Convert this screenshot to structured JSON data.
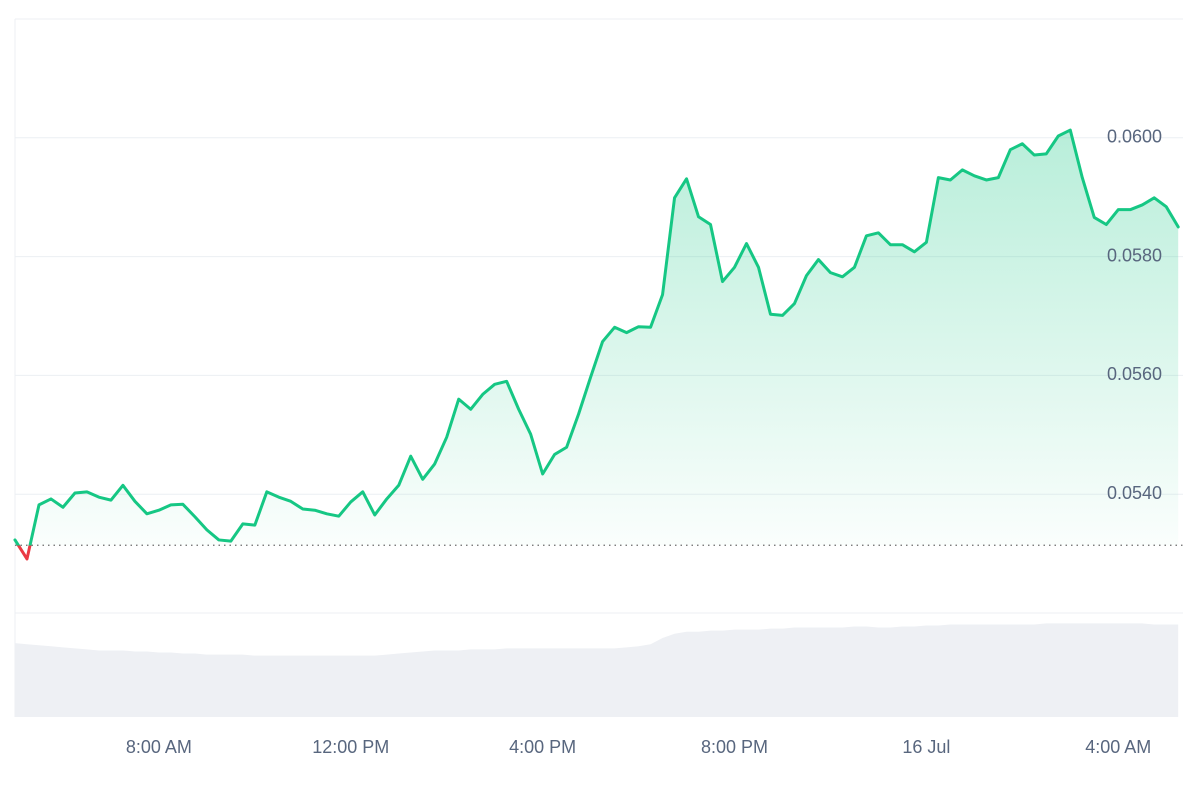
{
  "chart_data": {
    "type": "line",
    "x": [
      5,
      5.25,
      5.5,
      5.75,
      6,
      6.25,
      6.5,
      6.75,
      7,
      7.25,
      7.5,
      7.75,
      8,
      8.25,
      8.5,
      8.75,
      9,
      9.25,
      9.5,
      9.75,
      10,
      10.25,
      10.5,
      10.75,
      11,
      11.25,
      11.5,
      11.75,
      12,
      12.25,
      12.5,
      12.75,
      13,
      13.25,
      13.5,
      13.75,
      14,
      14.25,
      14.5,
      14.75,
      15,
      15.25,
      15.5,
      15.75,
      16,
      16.25,
      16.5,
      16.75,
      17,
      17.25,
      17.5,
      17.75,
      18,
      18.25,
      18.5,
      18.75,
      19,
      19.25,
      19.5,
      19.75,
      20,
      20.25,
      20.5,
      20.75,
      21,
      21.25,
      21.5,
      21.75,
      22,
      22.25,
      22.5,
      22.75,
      23,
      23.25,
      23.5,
      23.75,
      24,
      24.25,
      24.5,
      24.75,
      25,
      25.25,
      25.5,
      25.75,
      26,
      26.25,
      26.5,
      26.75,
      27,
      27.25,
      27.5,
      27.75,
      28,
      28.25,
      28.5,
      28.75,
      29,
      29.25
    ],
    "series": [
      {
        "color": "#16c784",
        "below_color": "#ea3943",
        "values": [
          0.05323,
          0.05291,
          0.05382,
          0.05392,
          0.05378,
          0.05402,
          0.05404,
          0.05395,
          0.0539,
          0.05415,
          0.05388,
          0.05367,
          0.05373,
          0.05382,
          0.05383,
          0.05362,
          0.0534,
          0.05323,
          0.05321,
          0.0535,
          0.05348,
          0.05404,
          0.05395,
          0.05388,
          0.05375,
          0.05373,
          0.05367,
          0.05363,
          0.05387,
          0.05404,
          0.05365,
          0.05392,
          0.05415,
          0.05464,
          0.05425,
          0.05451,
          0.05496,
          0.0556,
          0.05543,
          0.05568,
          0.05585,
          0.0559,
          0.05543,
          0.05501,
          0.05434,
          0.05467,
          0.05479,
          0.05535,
          0.05597,
          0.05657,
          0.05681,
          0.05672,
          0.05682,
          0.05681,
          0.05736,
          0.05899,
          0.05931,
          0.05867,
          0.05854,
          0.05758,
          0.05782,
          0.05822,
          0.05782,
          0.05703,
          0.05701,
          0.05721,
          0.05768,
          0.05795,
          0.05773,
          0.05766,
          0.05782,
          0.05835,
          0.0584,
          0.0582,
          0.0582,
          0.05808,
          0.05824,
          0.05933,
          0.05929,
          0.05946,
          0.05936,
          0.05929,
          0.05933,
          0.0598,
          0.0599,
          0.05971,
          0.05973,
          0.06003,
          0.06013,
          0.05933,
          0.05866,
          0.05854,
          0.05879,
          0.05879,
          0.05887,
          0.05899,
          0.05884,
          0.0585
        ]
      },
      {
        "color": "#eef0f4",
        "axis": "y2",
        "values": [
          71,
          70,
          69,
          68,
          67,
          66,
          65,
          64,
          64,
          64,
          63,
          63,
          62,
          62,
          61,
          61,
          60,
          60,
          60,
          60,
          59,
          59,
          59,
          59,
          59,
          59,
          59,
          59,
          59,
          59,
          59,
          60,
          61,
          62,
          63,
          64,
          64,
          64,
          65,
          65,
          65,
          66,
          66,
          66,
          66,
          66,
          66,
          66,
          66,
          66,
          66,
          67,
          68,
          70,
          76,
          80,
          82,
          82,
          83,
          83,
          84,
          84,
          84,
          85,
          85,
          86,
          86,
          86,
          86,
          86,
          87,
          87,
          86,
          86,
          87,
          87,
          88,
          88,
          89,
          89,
          89,
          89,
          89,
          89,
          89,
          89,
          90,
          90,
          90,
          90,
          90,
          90,
          90,
          90,
          90,
          89,
          89,
          89
        ]
      }
    ],
    "baseline": 0.05314,
    "xlim": [
      5,
      29.35
    ],
    "xticks": [
      {
        "value": 8,
        "label": "8:00 AM"
      },
      {
        "value": 12,
        "label": "12:00 PM"
      },
      {
        "value": 16,
        "label": "4:00 PM"
      },
      {
        "value": 20,
        "label": "8:00 PM"
      },
      {
        "value": 24,
        "label": "16 Jul"
      },
      {
        "value": 28,
        "label": "4:00 AM"
      }
    ],
    "ylim": [
      0.052,
      0.062
    ],
    "yticks": [
      {
        "value": 0.054,
        "label": "0.0540"
      },
      {
        "value": 0.056,
        "label": "0.0560"
      },
      {
        "value": 0.058,
        "label": "0.0580"
      },
      {
        "value": 0.06,
        "label": "0.0600"
      }
    ],
    "y2lim": [
      0,
      100
    ],
    "grid": true
  }
}
